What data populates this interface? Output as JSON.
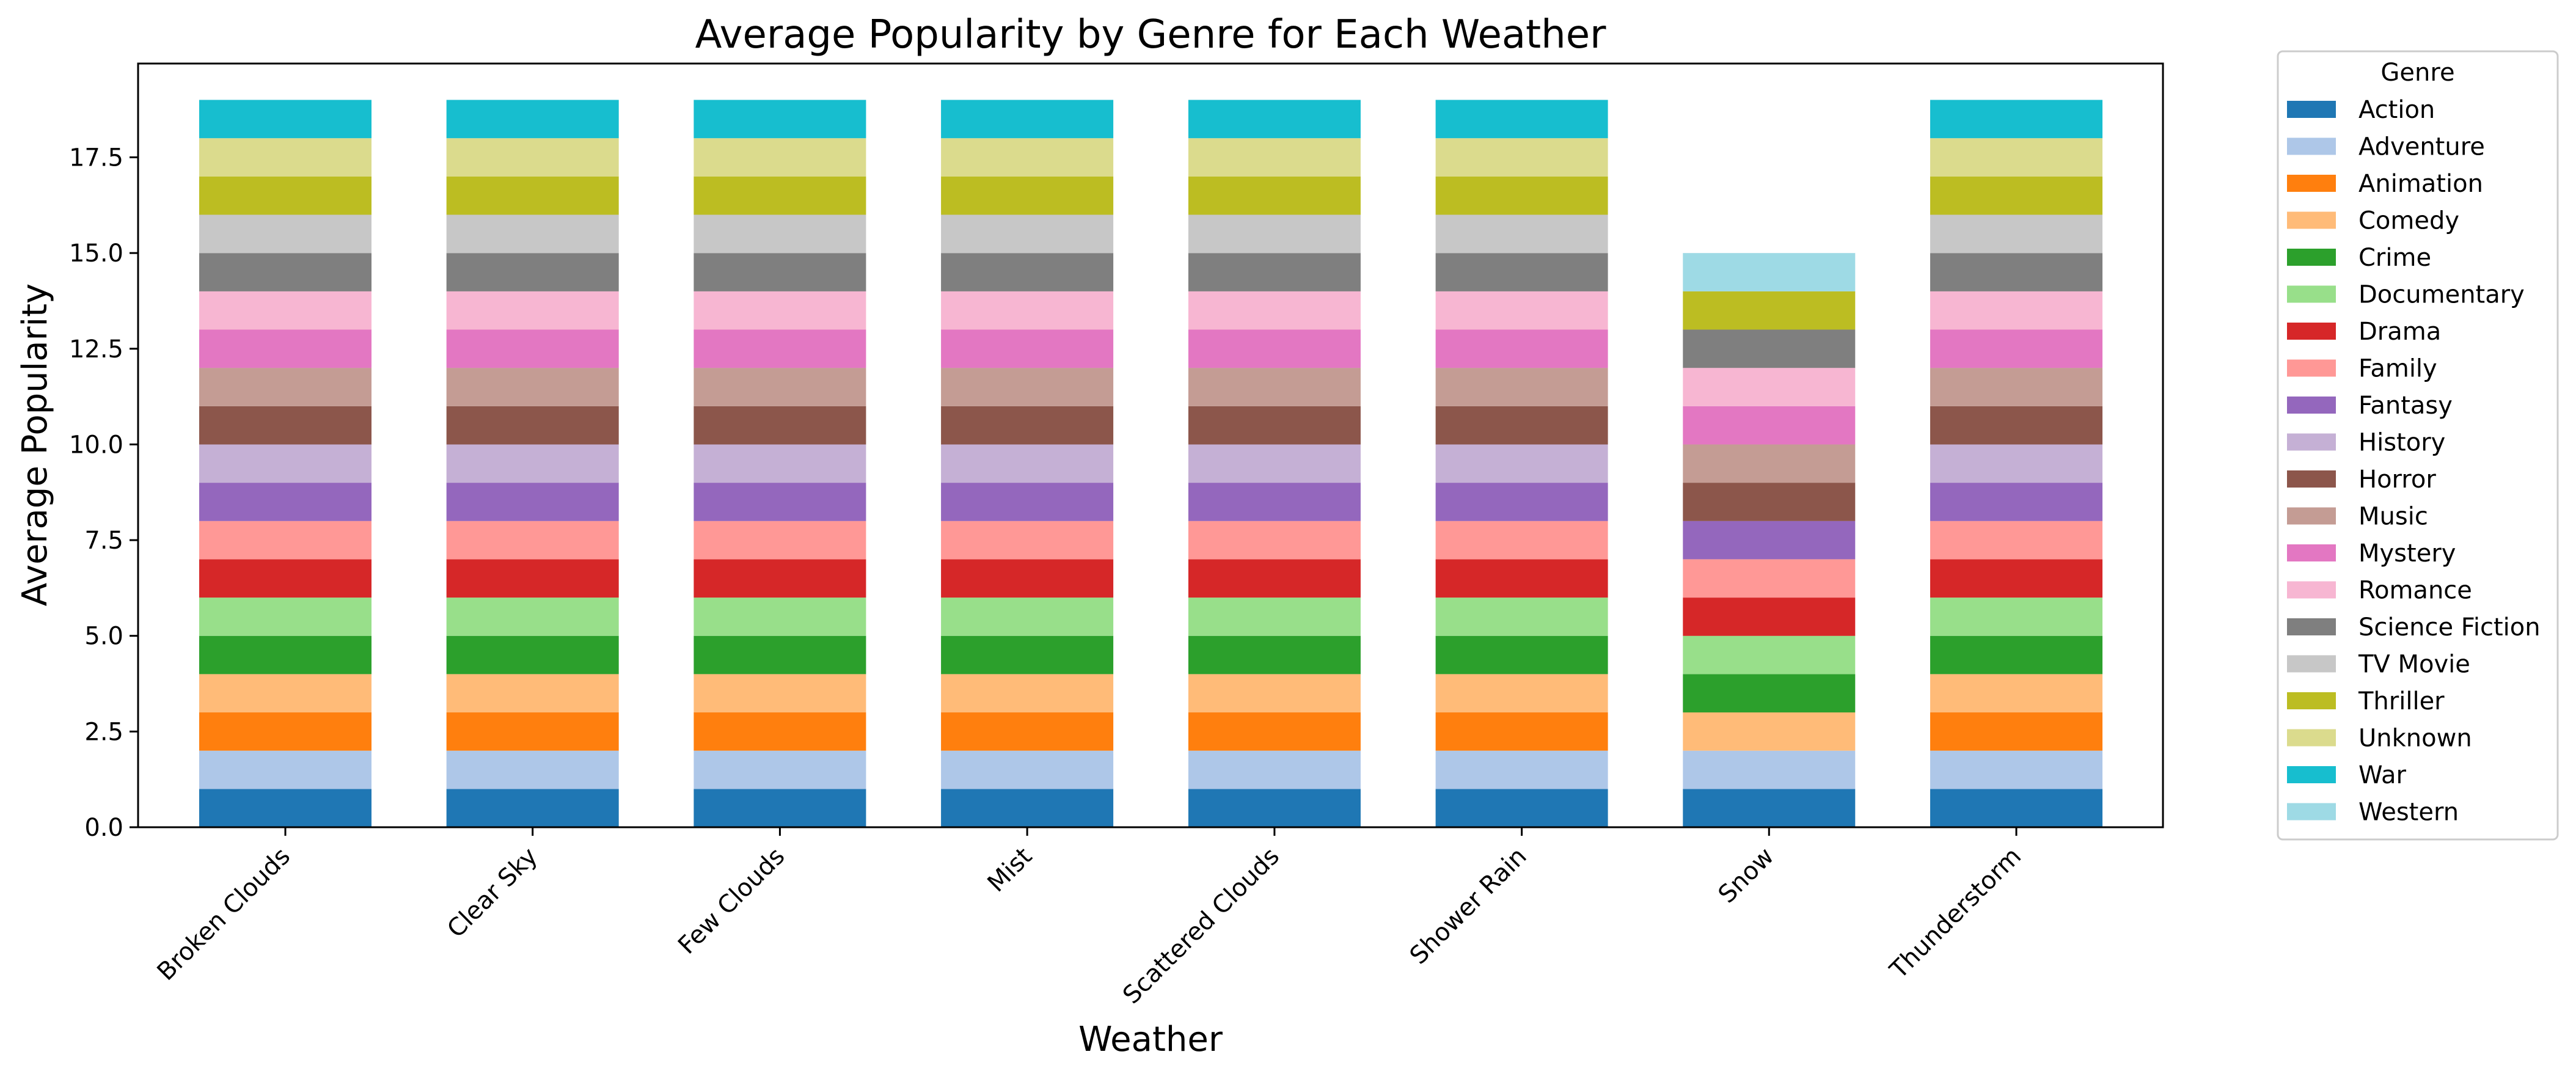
{
  "chart_data": {
    "type": "bar",
    "stacked": true,
    "title": "Average Popularity by Genre for Each Weather",
    "xlabel": "Weather",
    "ylabel": "Average Popularity",
    "ylim": [
      0,
      19.95
    ],
    "yticks": [
      "0.0",
      "2.5",
      "5.0",
      "7.5",
      "10.0",
      "12.5",
      "15.0",
      "17.5"
    ],
    "categories": [
      "Broken Clouds",
      "Clear Sky",
      "Few Clouds",
      "Mist",
      "Scattered Clouds",
      "Shower Rain",
      "Snow",
      "Thunderstorm"
    ],
    "legend_title": "Genre",
    "legend_position": "outside-right",
    "grid": false,
    "series": [
      {
        "name": "Action",
        "color": "#1f77b4",
        "values": [
          1,
          1,
          1,
          1,
          1,
          1,
          1,
          1
        ]
      },
      {
        "name": "Adventure",
        "color": "#aec7e8",
        "values": [
          1,
          1,
          1,
          1,
          1,
          1,
          1,
          1
        ]
      },
      {
        "name": "Animation",
        "color": "#ff7f0e",
        "values": [
          1,
          1,
          1,
          1,
          1,
          1,
          0,
          1
        ]
      },
      {
        "name": "Comedy",
        "color": "#ffbb78",
        "values": [
          1,
          1,
          1,
          1,
          1,
          1,
          1,
          1
        ]
      },
      {
        "name": "Crime",
        "color": "#2ca02c",
        "values": [
          1,
          1,
          1,
          1,
          1,
          1,
          1,
          1
        ]
      },
      {
        "name": "Documentary",
        "color": "#98df8a",
        "values": [
          1,
          1,
          1,
          1,
          1,
          1,
          1,
          1
        ]
      },
      {
        "name": "Drama",
        "color": "#d62728",
        "values": [
          1,
          1,
          1,
          1,
          1,
          1,
          1,
          1
        ]
      },
      {
        "name": "Family",
        "color": "#ff9896",
        "values": [
          1,
          1,
          1,
          1,
          1,
          1,
          1,
          1
        ]
      },
      {
        "name": "Fantasy",
        "color": "#9467bd",
        "values": [
          1,
          1,
          1,
          1,
          1,
          1,
          1,
          1
        ]
      },
      {
        "name": "History",
        "color": "#c5b0d5",
        "values": [
          1,
          1,
          1,
          1,
          1,
          1,
          0,
          1
        ]
      },
      {
        "name": "Horror",
        "color": "#8c564b",
        "values": [
          1,
          1,
          1,
          1,
          1,
          1,
          1,
          1
        ]
      },
      {
        "name": "Music",
        "color": "#c49c94",
        "values": [
          1,
          1,
          1,
          1,
          1,
          1,
          1,
          1
        ]
      },
      {
        "name": "Mystery",
        "color": "#e377c2",
        "values": [
          1,
          1,
          1,
          1,
          1,
          1,
          1,
          1
        ]
      },
      {
        "name": "Romance",
        "color": "#f7b6d2",
        "values": [
          1,
          1,
          1,
          1,
          1,
          1,
          1,
          1
        ]
      },
      {
        "name": "Science Fiction",
        "color": "#7f7f7f",
        "values": [
          1,
          1,
          1,
          1,
          1,
          1,
          1,
          1
        ]
      },
      {
        "name": "TV Movie",
        "color": "#c7c7c7",
        "values": [
          1,
          1,
          1,
          1,
          1,
          1,
          0,
          1
        ]
      },
      {
        "name": "Thriller",
        "color": "#bcbd22",
        "values": [
          1,
          1,
          1,
          1,
          1,
          1,
          1,
          1
        ]
      },
      {
        "name": "Unknown",
        "color": "#dbdb8d",
        "values": [
          1,
          1,
          1,
          1,
          1,
          1,
          0,
          1
        ]
      },
      {
        "name": "War",
        "color": "#17becf",
        "values": [
          1,
          1,
          1,
          1,
          1,
          1,
          0,
          1
        ]
      },
      {
        "name": "Western",
        "color": "#9edae5",
        "values": [
          0,
          0,
          0,
          0,
          0,
          0,
          1,
          0
        ]
      }
    ]
  }
}
